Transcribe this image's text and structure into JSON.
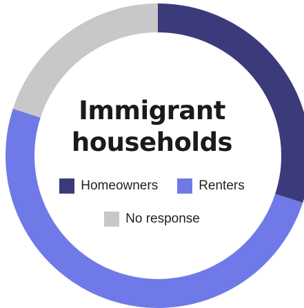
{
  "chart_data": {
    "type": "donut",
    "title_lines": [
      "Immigrant",
      "households"
    ],
    "categories": [
      "Homeowners",
      "Renters",
      "No response"
    ],
    "values": [
      30,
      50,
      20
    ],
    "colors": [
      "#3b3b7b",
      "#6f7ae8",
      "#c8c8ca"
    ],
    "legend": [
      {
        "label": "Homeowners",
        "color": "#3b3b7b"
      },
      {
        "label": "Renters",
        "color": "#6f7ae8"
      },
      {
        "label": "No response",
        "color": "#c8c8ca"
      }
    ],
    "start_angle_degrees": 0,
    "direction": "clockwise"
  }
}
